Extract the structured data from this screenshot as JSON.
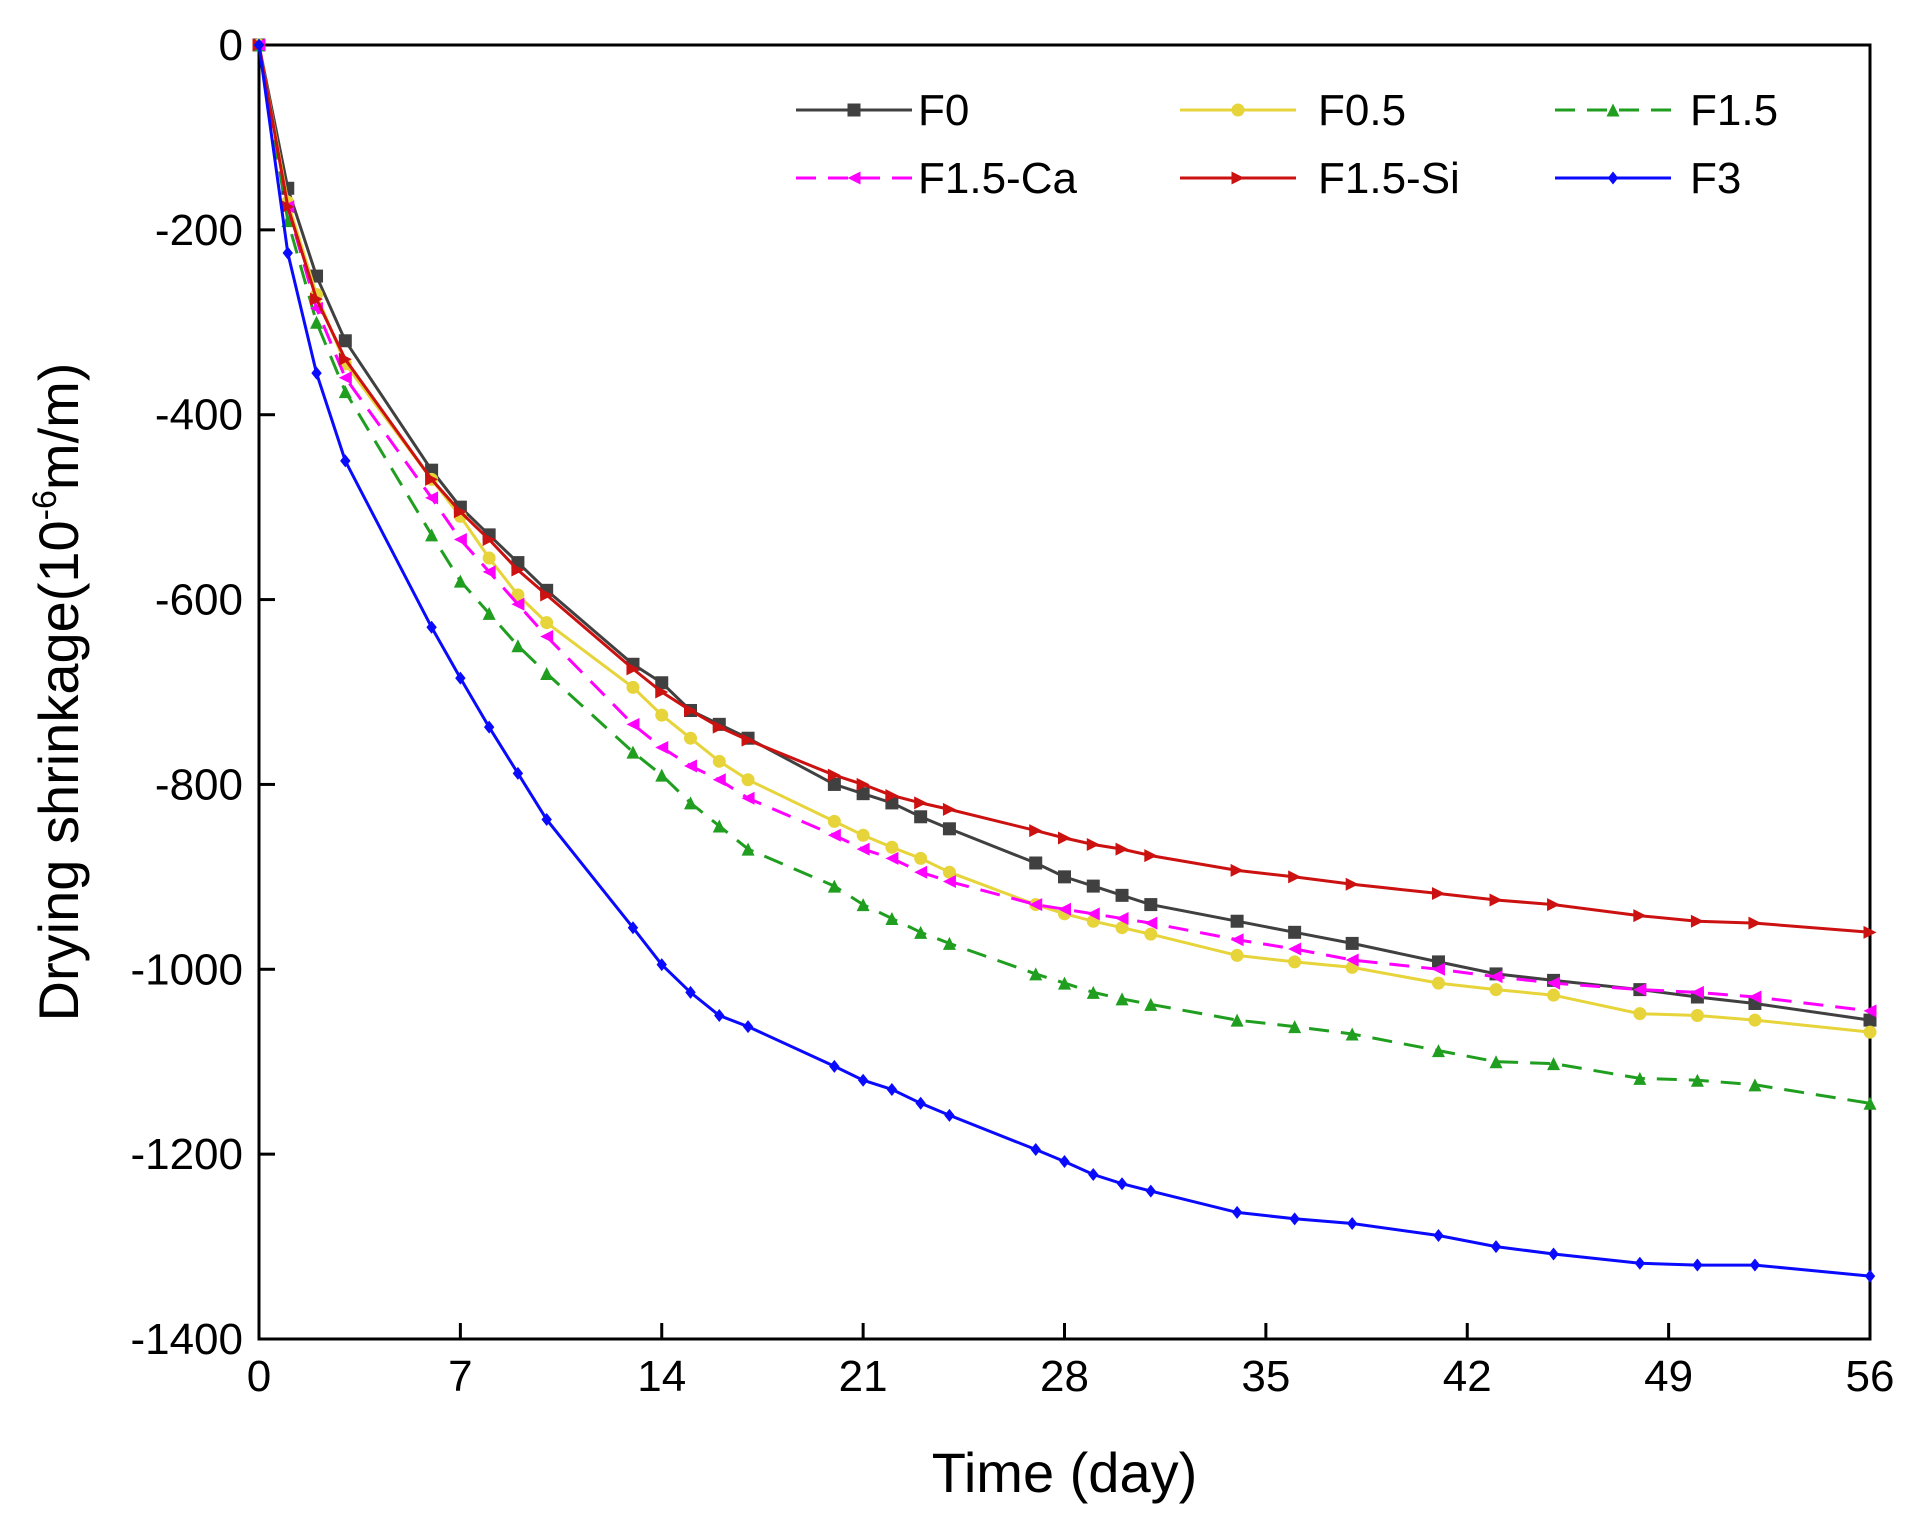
{
  "chart_data": {
    "type": "line",
    "title": "",
    "xlabel": "Time (day)",
    "ylabel_main": "Drying shrinkage(10",
    "ylabel_sup": "-6",
    "ylabel_tail": "m/m)",
    "xlim": [
      0,
      56
    ],
    "ylim": [
      -1400,
      0
    ],
    "xticks": [
      0,
      7,
      14,
      21,
      28,
      35,
      42,
      49,
      56
    ],
    "yticks": [
      0,
      -200,
      -400,
      -600,
      -800,
      -1000,
      -1200,
      -1400
    ],
    "legend_position": "top-right",
    "series": [
      {
        "name": "F0",
        "color": "#404040",
        "dash": "solid",
        "marker": "square",
        "x": [
          0,
          1,
          2,
          3,
          6,
          7,
          8,
          9,
          10,
          13,
          14,
          15,
          16,
          17,
          20,
          21,
          22,
          23,
          24,
          27,
          28,
          29,
          30,
          31,
          34,
          36,
          38,
          41,
          43,
          45,
          48,
          50,
          52,
          56
        ],
        "y": [
          0,
          -155,
          -250,
          -320,
          -460,
          -500,
          -530,
          -560,
          -590,
          -670,
          -690,
          -720,
          -735,
          -750,
          -800,
          -810,
          -820,
          -835,
          -848,
          -885,
          -900,
          -910,
          -920,
          -930,
          -948,
          -960,
          -972,
          -992,
          -1005,
          -1012,
          -1022,
          -1030,
          -1037,
          -1055
        ]
      },
      {
        "name": "F0.5",
        "color": "#e6d43a",
        "dash": "solid",
        "marker": "circle",
        "x": [
          0,
          1,
          2,
          3,
          6,
          7,
          8,
          9,
          10,
          13,
          14,
          15,
          16,
          17,
          20,
          21,
          22,
          23,
          24,
          27,
          28,
          29,
          30,
          31,
          34,
          36,
          38,
          41,
          43,
          45,
          48,
          50,
          52,
          56
        ],
        "y": [
          0,
          -170,
          -270,
          -345,
          -470,
          -510,
          -555,
          -595,
          -625,
          -695,
          -725,
          -750,
          -775,
          -795,
          -840,
          -855,
          -868,
          -880,
          -895,
          -930,
          -940,
          -948,
          -955,
          -962,
          -985,
          -992,
          -998,
          -1015,
          -1022,
          -1028,
          -1048,
          -1050,
          -1055,
          -1068
        ]
      },
      {
        "name": "F1.5",
        "color": "#1f9e1f",
        "dash": "dashed",
        "marker": "triangle-up",
        "x": [
          0,
          1,
          2,
          3,
          6,
          7,
          8,
          9,
          10,
          13,
          14,
          15,
          16,
          17,
          20,
          21,
          22,
          23,
          24,
          27,
          28,
          29,
          30,
          31,
          34,
          36,
          38,
          41,
          43,
          45,
          48,
          50,
          52,
          56
        ],
        "y": [
          0,
          -190,
          -300,
          -375,
          -530,
          -580,
          -615,
          -650,
          -680,
          -765,
          -790,
          -820,
          -845,
          -870,
          -910,
          -930,
          -945,
          -960,
          -972,
          -1005,
          -1015,
          -1025,
          -1032,
          -1038,
          -1055,
          -1062,
          -1070,
          -1088,
          -1100,
          -1102,
          -1118,
          -1120,
          -1125,
          -1145
        ]
      },
      {
        "name": "F1.5-Ca",
        "color": "#ff00ff",
        "dash": "dashed",
        "marker": "triangle-left",
        "x": [
          0,
          1,
          2,
          3,
          6,
          7,
          8,
          9,
          10,
          13,
          14,
          15,
          16,
          17,
          20,
          21,
          22,
          23,
          24,
          27,
          28,
          29,
          30,
          31,
          34,
          36,
          38,
          41,
          43,
          45,
          48,
          50,
          52,
          56
        ],
        "y": [
          0,
          -175,
          -285,
          -360,
          -490,
          -535,
          -570,
          -605,
          -640,
          -735,
          -760,
          -780,
          -795,
          -815,
          -855,
          -870,
          -880,
          -895,
          -905,
          -930,
          -935,
          -940,
          -945,
          -950,
          -968,
          -978,
          -990,
          -1000,
          -1008,
          -1015,
          -1022,
          -1025,
          -1030,
          -1045
        ]
      },
      {
        "name": "F1.5-Si",
        "color": "#cc1111",
        "dash": "solid",
        "marker": "triangle-right",
        "x": [
          0,
          1,
          2,
          3,
          6,
          7,
          8,
          9,
          10,
          13,
          14,
          15,
          16,
          17,
          20,
          21,
          22,
          23,
          24,
          27,
          28,
          29,
          30,
          31,
          34,
          36,
          38,
          41,
          43,
          45,
          48,
          50,
          52,
          56
        ],
        "y": [
          0,
          -175,
          -275,
          -340,
          -470,
          -505,
          -535,
          -568,
          -595,
          -675,
          -700,
          -720,
          -738,
          -752,
          -790,
          -800,
          -812,
          -820,
          -827,
          -850,
          -858,
          -865,
          -870,
          -877,
          -893,
          -900,
          -908,
          -918,
          -925,
          -930,
          -942,
          -948,
          -950,
          -960
        ]
      },
      {
        "name": "F3",
        "color": "#0a0aff",
        "dash": "solid",
        "marker": "diamond",
        "x": [
          0,
          1,
          2,
          3,
          6,
          7,
          8,
          9,
          10,
          13,
          14,
          15,
          16,
          17,
          20,
          21,
          22,
          23,
          24,
          27,
          28,
          29,
          30,
          31,
          34,
          36,
          38,
          41,
          43,
          45,
          48,
          50,
          52,
          56
        ],
        "y": [
          0,
          -225,
          -355,
          -450,
          -630,
          -685,
          -738,
          -788,
          -838,
          -955,
          -995,
          -1025,
          -1050,
          -1062,
          -1105,
          -1120,
          -1130,
          -1145,
          -1158,
          -1195,
          -1208,
          -1222,
          -1232,
          -1240,
          -1263,
          -1270,
          -1275,
          -1288,
          -1300,
          -1308,
          -1318,
          -1320,
          -1320,
          -1332
        ]
      }
    ]
  }
}
